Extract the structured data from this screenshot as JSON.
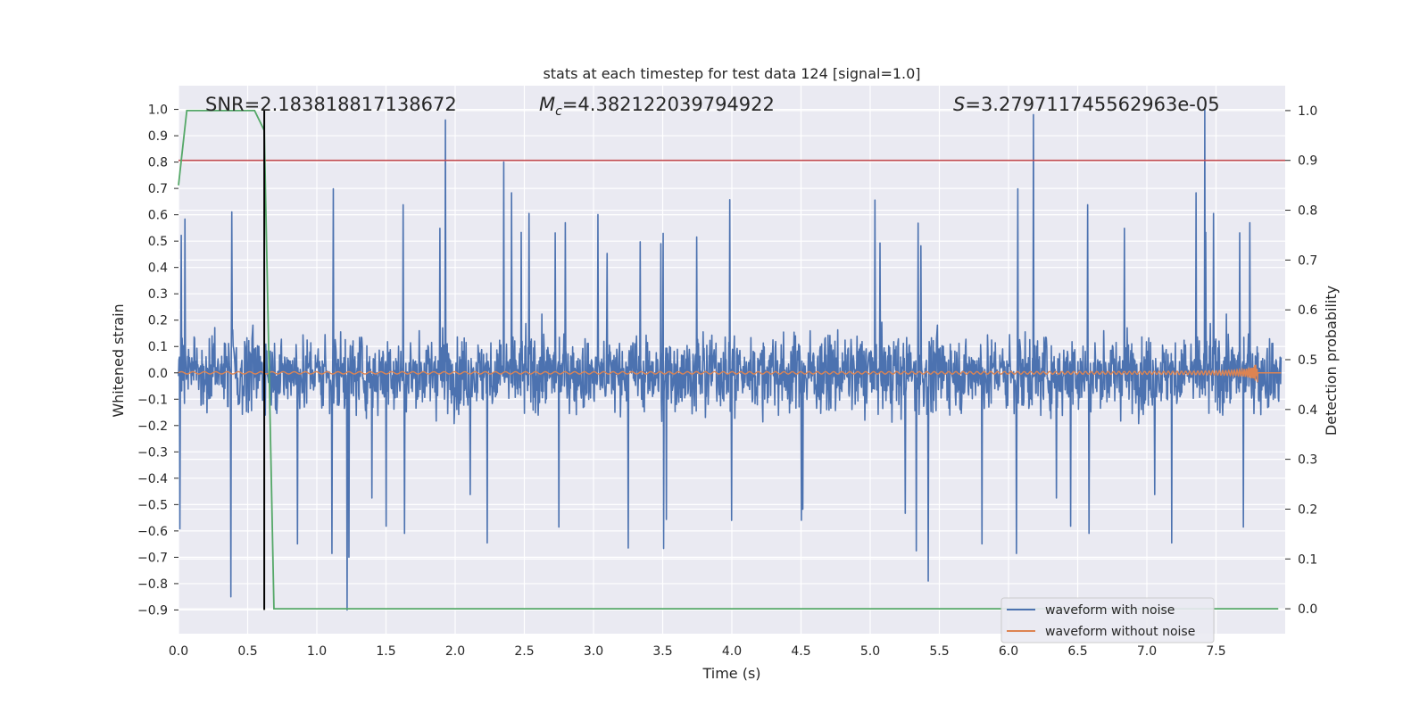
{
  "chart_data": {
    "type": "line",
    "title": "stats at each timestep for test data 124 [signal=1.0]",
    "xlabel": "Time (s)",
    "ylabel_left": "Whitened strain",
    "ylabel_right": "Detection probability",
    "xlim": [
      0.0,
      8.0
    ],
    "ylim_left": [
      -0.99,
      1.09
    ],
    "ylim_right": [
      -0.05,
      1.05
    ],
    "x_ticks": [
      "0.0",
      "0.5",
      "1.0",
      "1.5",
      "2.0",
      "2.5",
      "3.0",
      "3.5",
      "4.0",
      "4.5",
      "5.0",
      "5.5",
      "6.0",
      "6.5",
      "7.0",
      "7.5"
    ],
    "x_tick_values": [
      0.0,
      0.5,
      1.0,
      1.5,
      2.0,
      2.5,
      3.0,
      3.5,
      4.0,
      4.5,
      5.0,
      5.5,
      6.0,
      6.5,
      7.0,
      7.5
    ],
    "y_ticks_left": [
      "1.0",
      "0.9",
      "0.8",
      "0.7",
      "0.6",
      "0.5",
      "0.4",
      "0.3",
      "0.2",
      "0.1",
      "0.0",
      "−0.1",
      "−0.2",
      "−0.3",
      "−0.4",
      "−0.5",
      "−0.6",
      "−0.7",
      "−0.8",
      "−0.9"
    ],
    "y_tick_values_left": [
      1.0,
      0.9,
      0.8,
      0.7,
      0.6,
      0.5,
      0.4,
      0.3,
      0.2,
      0.1,
      0.0,
      -0.1,
      -0.2,
      -0.3,
      -0.4,
      -0.5,
      -0.6,
      -0.7,
      -0.8,
      -0.9
    ],
    "y_ticks_right": [
      "1.0",
      "0.9",
      "0.8",
      "0.7",
      "0.6",
      "0.5",
      "0.4",
      "0.3",
      "0.2",
      "0.1",
      "0.0"
    ],
    "y_tick_values_right": [
      1.0,
      0.9,
      0.8,
      0.7,
      0.6,
      0.5,
      0.4,
      0.3,
      0.2,
      0.1,
      0.0
    ],
    "grid": true,
    "legend_position": "lower-right",
    "annotations": {
      "snr": "SNR=2.183818817138672",
      "mc_symbol": "M",
      "mc_sub": "c",
      "mc_value": "=4.382122039794922",
      "s_symbol": "S",
      "s_value": "=3.279711745562963e-05"
    },
    "series": [
      {
        "name": "waveform with noise",
        "axis": "left",
        "color": "#4c72b0",
        "envelope": {
          "typical_upper": 0.38,
          "typical_lower": -0.38
        },
        "spikes": [
          {
            "x": 0.38,
            "y": -0.85
          },
          {
            "x": 1.22,
            "y": -0.9
          },
          {
            "x": 1.93,
            "y": 0.96
          },
          {
            "x": 2.35,
            "y": 0.8
          },
          {
            "x": 5.42,
            "y": -0.79
          },
          {
            "x": 6.18,
            "y": 0.98
          },
          {
            "x": 7.42,
            "y": 1.0
          }
        ]
      },
      {
        "name": "waveform without noise",
        "axis": "left",
        "color": "#dd8452",
        "chirp_end_time": 7.8,
        "peak_amplitude": 0.05
      },
      {
        "name": "detection probability",
        "axis": "right",
        "color": "#55a868",
        "points": [
          [
            0.0,
            0.85
          ],
          [
            0.06,
            1.0
          ],
          [
            0.55,
            1.0
          ],
          [
            0.62,
            0.96
          ],
          [
            0.69,
            0.0
          ],
          [
            7.95,
            0.0
          ]
        ]
      },
      {
        "name": "threshold",
        "axis": "right",
        "color": "#c44e52",
        "y": 0.9
      },
      {
        "name": "detection time",
        "axis": "left",
        "color": "#000000",
        "x": 0.62,
        "y_range": [
          -0.9,
          1.0
        ]
      }
    ],
    "legend": [
      {
        "label": "waveform with noise",
        "color": "#4c72b0"
      },
      {
        "label": "waveform without noise",
        "color": "#dd8452"
      }
    ]
  }
}
